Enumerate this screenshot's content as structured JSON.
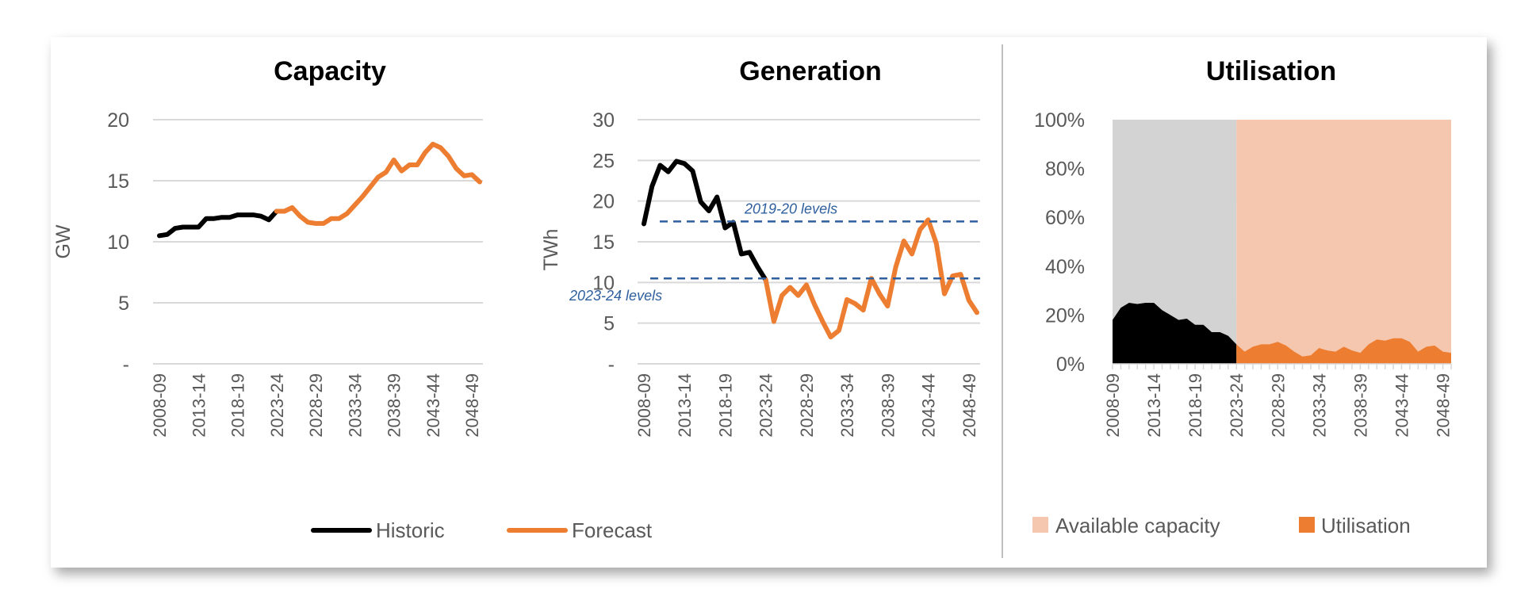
{
  "colors": {
    "historic": "#000000",
    "forecast": "#ED7D31",
    "available_historic": "#D3D3D3",
    "available_forecast": "#F5C7AE",
    "reference": "#2E5F9E",
    "grid": "#D9D9D9"
  },
  "categories": [
    "2008-09",
    "2009-10",
    "2010-11",
    "2011-12",
    "2012-13",
    "2013-14",
    "2014-15",
    "2015-16",
    "2016-17",
    "2017-18",
    "2018-19",
    "2019-20",
    "2020-21",
    "2021-22",
    "2022-23",
    "2023-24",
    "2024-25",
    "2025-26",
    "2026-27",
    "2027-28",
    "2028-29",
    "2029-30",
    "2030-31",
    "2031-32",
    "2032-33",
    "2033-34",
    "2034-35",
    "2035-36",
    "2036-37",
    "2037-38",
    "2038-39",
    "2039-40",
    "2040-41",
    "2041-42",
    "2042-43",
    "2043-44",
    "2044-45",
    "2045-46",
    "2046-47",
    "2047-48",
    "2048-49",
    "2049-50"
  ],
  "tick_labels": [
    "2008-09",
    "2013-14",
    "2018-19",
    "2023-24",
    "2028-29",
    "2033-34",
    "2038-39",
    "2043-44",
    "2048-49"
  ],
  "legend_left": {
    "historic": "Historic",
    "forecast": "Forecast"
  },
  "legend_right": {
    "available": "Available capacity",
    "utilisation": "Utilisation"
  },
  "chart_data": [
    {
      "type": "line",
      "title": "Capacity",
      "xlabel": "",
      "ylabel": "GW",
      "ylim": [
        0,
        20
      ],
      "yticks": [
        "-",
        "5",
        "10",
        "15",
        "20"
      ],
      "grid": true,
      "legend": "bottom",
      "series": [
        {
          "name": "Historic",
          "start": "2008-09",
          "values": [
            10.5,
            10.6,
            11.1,
            11.2,
            11.2,
            11.2,
            11.9,
            11.9,
            12.0,
            12.0,
            12.2,
            12.2,
            12.2,
            12.1,
            11.8,
            12.5
          ]
        },
        {
          "name": "Forecast",
          "start": "2023-24",
          "values": [
            12.5,
            12.5,
            12.8,
            12.1,
            11.6,
            11.5,
            11.5,
            11.9,
            11.9,
            12.3,
            13.0,
            13.7,
            14.5,
            15.3,
            15.7,
            16.7,
            15.8,
            16.3,
            16.3,
            17.3,
            18.0,
            17.7,
            17.0,
            16.0,
            15.4,
            15.5,
            14.9
          ]
        }
      ]
    },
    {
      "type": "line",
      "title": "Generation",
      "xlabel": "",
      "ylabel": "TWh",
      "ylim": [
        0,
        30
      ],
      "yticks": [
        "-",
        "5",
        "10",
        "15",
        "20",
        "25",
        "30"
      ],
      "grid": true,
      "legend": "bottom",
      "series": [
        {
          "name": "Historic",
          "start": "2008-09",
          "values": [
            17.2,
            21.8,
            24.4,
            23.6,
            24.9,
            24.6,
            23.7,
            19.9,
            18.8,
            20.5,
            16.7,
            17.4,
            13.5,
            13.7,
            11.9,
            10.3
          ]
        },
        {
          "name": "Forecast",
          "start": "2023-24",
          "values": [
            10.3,
            5.2,
            8.4,
            9.4,
            8.4,
            9.7,
            7.3,
            5.2,
            3.3,
            4.1,
            7.9,
            7.4,
            6.6,
            10.5,
            8.6,
            7.1,
            11.9,
            15.1,
            13.5,
            16.5,
            17.7,
            14.8,
            8.6,
            10.8,
            11.0,
            7.8,
            6.3
          ]
        }
      ],
      "annotations": [
        {
          "text": "2019-20 levels",
          "value": 17.5
        },
        {
          "text": "2023-24 levels",
          "value": 10.5
        }
      ]
    },
    {
      "type": "area",
      "title": "Utilisation",
      "xlabel": "",
      "ylabel": "",
      "ylim": [
        0,
        100
      ],
      "yticks": [
        "0%",
        "20%",
        "40%",
        "60%",
        "80%",
        "100%"
      ],
      "grid": false,
      "legend": "bottom",
      "series": [
        {
          "start": "2008-09",
          "role": "available_historic",
          "values": [
            100,
            100,
            100,
            100,
            100,
            100,
            100,
            100,
            100,
            100,
            100,
            100,
            100,
            100,
            100,
            100
          ]
        },
        {
          "name": "Available capacity",
          "start": "2023-24",
          "role": "available_forecast",
          "values": [
            100,
            100,
            100,
            100,
            100,
            100,
            100,
            100,
            100,
            100,
            100,
            100,
            100,
            100,
            100,
            100,
            100,
            100,
            100,
            100,
            100,
            100,
            100,
            100,
            100,
            100,
            100
          ]
        },
        {
          "start": "2008-09",
          "role": "historic",
          "values": [
            18,
            23,
            25,
            24.5,
            25,
            25,
            22,
            20,
            18,
            18.5,
            16,
            16,
            13,
            13,
            11.5,
            8
          ]
        },
        {
          "name": "Utilisation",
          "start": "2023-24",
          "role": "forecast",
          "values": [
            8,
            5,
            7,
            8,
            8,
            9,
            7.5,
            5,
            3,
            3.5,
            6.5,
            5.5,
            5,
            7,
            5.5,
            4.5,
            8,
            10,
            9.5,
            10.5,
            10.5,
            9,
            5,
            7,
            7.5,
            5,
            4.5
          ]
        }
      ]
    }
  ]
}
